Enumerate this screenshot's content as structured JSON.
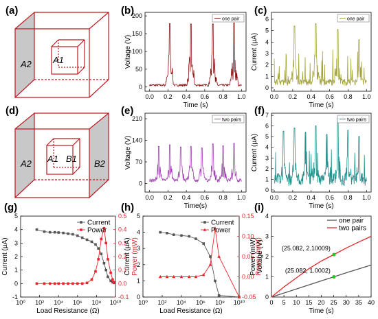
{
  "panel_labels": {
    "a": "(a)",
    "b": "(b)",
    "c": "(c)",
    "d": "(d)",
    "e": "(e)",
    "f": "(f)",
    "g": "(g)",
    "h": "(h)",
    "i": "(i)"
  },
  "colors": {
    "frame": "#c0171f",
    "face": "#c8c8c8",
    "b": "#8b1010",
    "c": "#a4a43c",
    "e": "#a23fb3",
    "f": "#1f8f8b",
    "current": "#555555",
    "power": "#e8252a",
    "i_one": "#555555",
    "i_two": "#e8252a",
    "marker": "#22cc22"
  },
  "diagram_a": {
    "labels": [
      "A2",
      "A1"
    ]
  },
  "diagram_d": {
    "labels": [
      "A2",
      "A1",
      "B1",
      "B2"
    ]
  },
  "chart_data": [
    {
      "id": "b",
      "type": "line",
      "legend": "one pair",
      "legend_position": "top-right",
      "xlabel": "Time (s)",
      "ylabel": "Voltage (V)",
      "xlim": [
        -0.05,
        1.05
      ],
      "ylim": [
        -12,
        210
      ],
      "xticks": [
        0.0,
        0.2,
        0.4,
        0.6,
        0.8,
        1.0
      ],
      "yticks": [
        0,
        50,
        100,
        150,
        200
      ],
      "xtick_labels": [
        "0.0",
        "0.2",
        "0.4",
        "0.6",
        "0.8",
        "1.0"
      ],
      "ytick_labels": [
        "0",
        "50",
        "100",
        "150",
        "200"
      ],
      "peaks": [
        0.22,
        0.45,
        0.69,
        0.92
      ],
      "peak_values": [
        178,
        177,
        177,
        180
      ],
      "baseline": 5
    },
    {
      "id": "c",
      "type": "line",
      "legend": "one pair",
      "legend_position": "top-right",
      "xlabel": "Time (s)",
      "ylabel": "Current (µA)",
      "xlim": [
        -0.03,
        1.05
      ],
      "ylim": [
        -0.3,
        6.6
      ],
      "xticks": [
        0.0,
        0.2,
        0.4,
        0.6,
        0.8,
        1.0
      ],
      "yticks": [
        0,
        1,
        2,
        3,
        4,
        5,
        6
      ],
      "xtick_labels": [
        "0.0",
        "0.2",
        "0.4",
        "0.6",
        "0.8",
        "1.0"
      ],
      "ytick_labels": [
        "0",
        "1",
        "2",
        "3",
        "4",
        "5",
        "6"
      ],
      "peaks": [
        0.22,
        0.45,
        0.69,
        0.92
      ],
      "peak_values": [
        5.4,
        5.6,
        5.1,
        4.2
      ],
      "baseline": 0.5
    },
    {
      "id": "e",
      "type": "line",
      "legend": "two pairs",
      "legend_position": "top-right",
      "xlabel": "Time(s)",
      "ylabel": "Voltage (V)",
      "xlim": [
        -0.05,
        1.05
      ],
      "ylim": [
        -28,
        228
      ],
      "xticks": [
        0.0,
        0.2,
        0.4,
        0.6,
        0.8,
        1.0
      ],
      "yticks": [
        0,
        70,
        140,
        210
      ],
      "xtick_labels": [
        "0.0",
        "0.2",
        "0.4",
        "0.6",
        "0.8",
        "1.0"
      ],
      "ytick_labels": [
        "0",
        "70",
        "140",
        "210"
      ],
      "peaks": [
        0.1,
        0.22,
        0.34,
        0.45,
        0.57,
        0.69,
        0.8,
        0.92
      ],
      "peak_values": [
        120,
        125,
        118,
        120,
        115,
        128,
        122,
        130
      ],
      "baseline": 10
    },
    {
      "id": "f",
      "type": "line",
      "legend": "two pairs",
      "legend_position": "top-right",
      "xlabel": "Time (s)",
      "ylabel": "Current (µA)",
      "xlim": [
        -0.03,
        1.05
      ],
      "ylim": [
        -0.2,
        7.2
      ],
      "xticks": [
        0.0,
        0.2,
        0.4,
        0.6,
        0.8,
        1.0
      ],
      "yticks": [
        0,
        1,
        2,
        3,
        4,
        5,
        6,
        7
      ],
      "xtick_labels": [
        "0.0",
        "0.2",
        "0.4",
        "0.6",
        "0.8",
        "1.0"
      ],
      "ytick_labels": [
        "0",
        "1",
        "2",
        "3",
        "4",
        "5",
        "6",
        "7"
      ],
      "peaks": [
        0.1,
        0.22,
        0.34,
        0.45,
        0.57,
        0.69,
        0.8,
        0.92
      ],
      "peak_values": [
        5.5,
        5.8,
        5.4,
        6.0,
        5.2,
        6.8,
        5.6,
        5.0
      ],
      "baseline": 1.0
    },
    {
      "id": "g",
      "type": "line",
      "legend_position": "top-right",
      "xlabel": "Load Resistance (Ω)",
      "ylabel_left": "Current (µA)",
      "ylabel_right": "Power (mW)",
      "xscale": "log",
      "xlim_exp": [
        0,
        10
      ],
      "ylim_left": [
        -1,
        5
      ],
      "ylim_right": [
        -0.1,
        0.5
      ],
      "xtick_labels": [
        "10⁰",
        "10²",
        "10⁴",
        "10⁶",
        "10⁸",
        "10¹⁰"
      ],
      "yticks_left": [
        -1,
        0,
        1,
        2,
        3,
        4,
        5
      ],
      "ytick_labels_left": [
        "-1",
        "0",
        "1",
        "2",
        "3",
        "4",
        "5"
      ],
      "yticks_right": [
        -0.1,
        0,
        0.1,
        0.2,
        0.3,
        0.4,
        0.5
      ],
      "ytick_labels_right": [
        "-0.1",
        "0.0",
        "0.1",
        "0.2",
        "0.3",
        "0.4",
        "0.5"
      ],
      "series": [
        {
          "name": "Current",
          "axis": "left",
          "marker": "square",
          "log_x": [
            1.7,
            2.5,
            3.1,
            3.6,
            4.0,
            4.5,
            5.0,
            5.5,
            6.0,
            6.5,
            7.0,
            7.5,
            7.9,
            8.2,
            8.5,
            8.8,
            9.0,
            9.2,
            9.5,
            9.7,
            9.85
          ],
          "values": [
            4.0,
            3.85,
            3.8,
            3.8,
            3.78,
            3.75,
            3.7,
            3.65,
            3.55,
            3.4,
            3.25,
            3.1,
            2.9,
            2.6,
            2.2,
            1.5,
            1.0,
            0.5,
            0.2,
            0.1,
            0.05
          ]
        },
        {
          "name": "Power",
          "axis": "right",
          "marker": "square",
          "log_x": [
            1.7,
            2.5,
            3.1,
            3.6,
            4.0,
            4.5,
            5.0,
            5.5,
            6.0,
            6.5,
            7.0,
            7.5,
            7.9,
            8.2,
            8.5,
            8.8,
            9.0,
            9.2,
            9.5,
            9.7,
            9.85
          ],
          "values": [
            0.0,
            0.0,
            0.0,
            0.0,
            0.0,
            0.0,
            0.0,
            0.0,
            0.0,
            0.0,
            0.005,
            0.03,
            0.09,
            0.18,
            0.33,
            0.41,
            0.3,
            0.18,
            0.08,
            0.03,
            0.01
          ]
        }
      ]
    },
    {
      "id": "h",
      "type": "line",
      "legend_position": "top-right",
      "xlabel": "Load Resistance (Ω)",
      "ylabel_left": "Current (µA)",
      "ylabel_right": "Power (mW)",
      "xscale": "log",
      "xlim_exp": [
        0,
        10
      ],
      "ylim_left": [
        0,
        5
      ],
      "ylim_right": [
        -0.05,
        0.15
      ],
      "xtick_labels": [
        "10⁰",
        "10²",
        "10⁴",
        "10⁶",
        "10⁸",
        "10¹⁰"
      ],
      "yticks_left": [
        0,
        1,
        2,
        3,
        4,
        5
      ],
      "ytick_labels_left": [
        "0",
        "1",
        "2",
        "3",
        "4",
        "5"
      ],
      "yticks_right": [
        -0.05,
        0,
        0.05,
        0.1,
        0.15
      ],
      "ytick_labels_right": [
        "-0.05",
        "0.00",
        "0.05",
        "0.10",
        "0.15"
      ],
      "series": [
        {
          "name": "Current",
          "axis": "left",
          "marker": "square",
          "log_x": [
            1.8,
            2.5,
            3.2,
            4.0,
            4.8,
            5.5,
            6.3,
            7.0,
            7.5,
            7.9,
            10.0
          ],
          "values": [
            4.0,
            3.95,
            3.85,
            3.8,
            3.75,
            3.6,
            3.3,
            2.5,
            1.0,
            0.1,
            0.0
          ]
        },
        {
          "name": "Power",
          "axis": "right",
          "marker": "triangle",
          "log_x": [
            1.8,
            2.5,
            3.2,
            4.0,
            4.8,
            5.5,
            6.3,
            7.0,
            7.5,
            7.9,
            10.0
          ],
          "values": [
            0.0,
            0.0,
            0.0,
            0.0,
            0.0,
            0.0,
            0.005,
            0.03,
            0.12,
            0.05,
            -0.05
          ]
        }
      ]
    },
    {
      "id": "i",
      "type": "line",
      "legend_position": "top-right",
      "xlabel": "Time (s)",
      "ylabel": "Power (mW)\nVoltage (V)",
      "xlim": [
        0,
        40
      ],
      "ylim": [
        0,
        4
      ],
      "xticks": [
        0,
        5,
        10,
        15,
        20,
        25,
        30,
        35,
        40
      ],
      "xtick_labels": [
        "0",
        "5",
        "10",
        "15",
        "20",
        "25",
        "30",
        "35",
        "40"
      ],
      "yticks": [
        0,
        1,
        2,
        3,
        4
      ],
      "ytick_labels": [
        "0",
        "1",
        "2",
        "3",
        "4"
      ],
      "series": [
        {
          "name": "one pair",
          "x": [
            0,
            10,
            20,
            25.082,
            30,
            40
          ],
          "values": [
            0,
            0.4,
            0.8,
            1.0002,
            1.2,
            1.58
          ]
        },
        {
          "name": "two pairs",
          "x": [
            0,
            5,
            10,
            15,
            20,
            25.082,
            30,
            35,
            40
          ],
          "values": [
            0,
            0.5,
            0.95,
            1.4,
            1.78,
            2.10009,
            2.42,
            2.72,
            3.0
          ]
        }
      ],
      "annotations": [
        {
          "x": 25.082,
          "y": 2.10009,
          "text": "(25.082, 2.10009)"
        },
        {
          "x": 25.082,
          "y": 1.0002,
          "text": "(25.082, 1.0002)"
        }
      ]
    }
  ]
}
